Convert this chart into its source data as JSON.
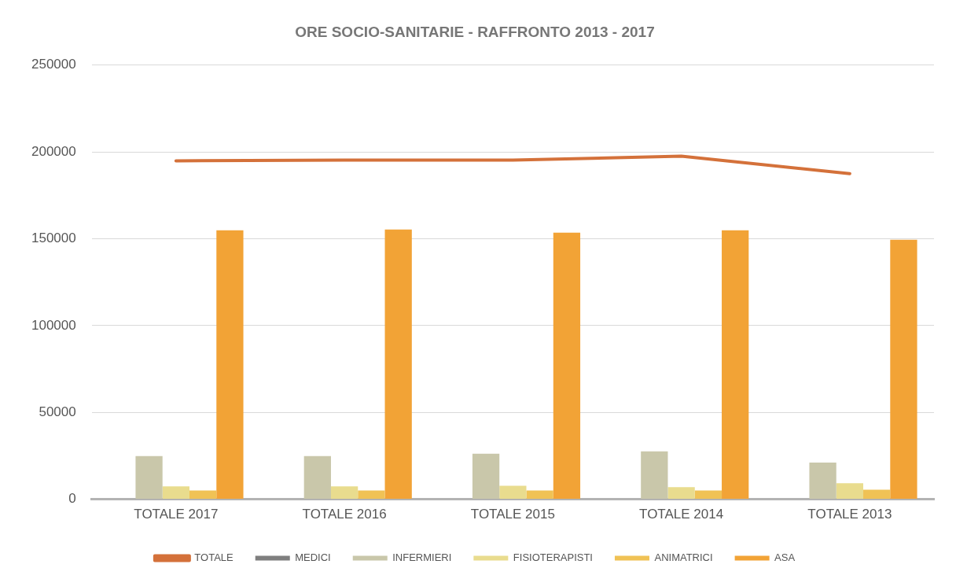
{
  "chart_data": {
    "type": "bar",
    "title": "ORE SOCIO-SANITARIE - RAFFRONTO 2013 - 2017",
    "categories": [
      "TOTALE 2017",
      "TOTALE 2016",
      "TOTALE 2015",
      "TOTALE 2014",
      "TOTALE 2013"
    ],
    "series": [
      {
        "name": "MEDICI",
        "color": "#7f7f7f",
        "values": [
          0,
          0,
          0,
          0,
          0
        ]
      },
      {
        "name": "INFERMIERI",
        "color": "#c9c7aa",
        "values": [
          24800,
          24800,
          26200,
          27600,
          21100
        ]
      },
      {
        "name": "FISIOTERAPISTI",
        "color": "#e9dc8e",
        "values": [
          7400,
          7400,
          7800,
          6900,
          9200
        ]
      },
      {
        "name": "ANIMATRICI",
        "color": "#f0c255",
        "values": [
          5000,
          5000,
          5000,
          5000,
          5500
        ]
      },
      {
        "name": "ASA",
        "color": "#f2a336",
        "values": [
          154900,
          155300,
          153500,
          154900,
          149400
        ]
      },
      {
        "name": "TOTALE",
        "type": "line",
        "color": "#d4713a",
        "values": [
          194900,
          195300,
          195300,
          197600,
          187500
        ]
      }
    ],
    "ylim": [
      0,
      250000
    ],
    "yticks": [
      0,
      50000,
      100000,
      150000,
      200000,
      250000
    ],
    "grid": "y",
    "legend": "bottom",
    "marker": "none"
  }
}
